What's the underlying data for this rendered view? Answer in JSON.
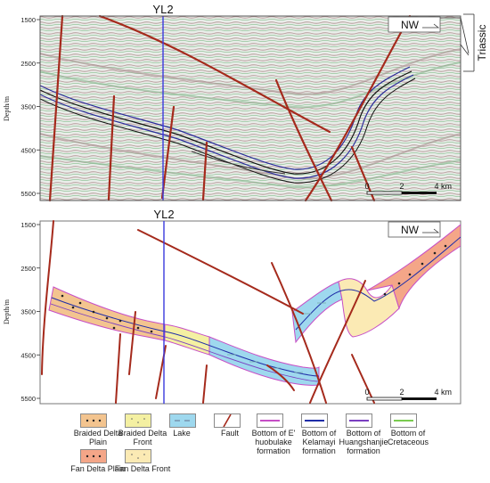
{
  "well_label": "YL2",
  "direction_label": "NW",
  "depth_axis_title": "Depth/m",
  "depth_ticks": [
    "1500",
    "2500",
    "3500",
    "4500",
    "5500"
  ],
  "scale_bar": {
    "ticks": [
      "0",
      "2",
      "4"
    ],
    "unit": "km"
  },
  "triassic_label": "Triassic",
  "legend": {
    "braided_delta_plain": "Braided Delta Plain",
    "braided_delta_front": "Braided Delta Front",
    "lake": "Lake",
    "fault": "Fault",
    "bottom_ehuobulake": "Bottom of E' huobulake formation",
    "bottom_kelamayi": "Bottom of Kelamayi formation",
    "bottom_huangshanjie": "Bottom of Huangshanjie formation",
    "bottom_cretaceous": "Bottom of Cretaceous",
    "fan_delta_plain": "Fan Delta Plain",
    "fan_delta_front": "Fan Delta Front"
  },
  "colors": {
    "braided_delta_plain": "#f3c48f",
    "braided_delta_front": "#f4f0a2",
    "lake": "#9ed8ee",
    "fan_delta_plain": "#f4a688",
    "fan_delta_front": "#fbeab4",
    "fault": "#a52a1c",
    "well": "#3a3adf",
    "bottom_ehuobulake": "#c64ec6",
    "bottom_kelamayi": "#1f2ea8",
    "bottom_huangshanjie": "#7a3fc0",
    "bottom_cretaceous": "#7acb50"
  }
}
